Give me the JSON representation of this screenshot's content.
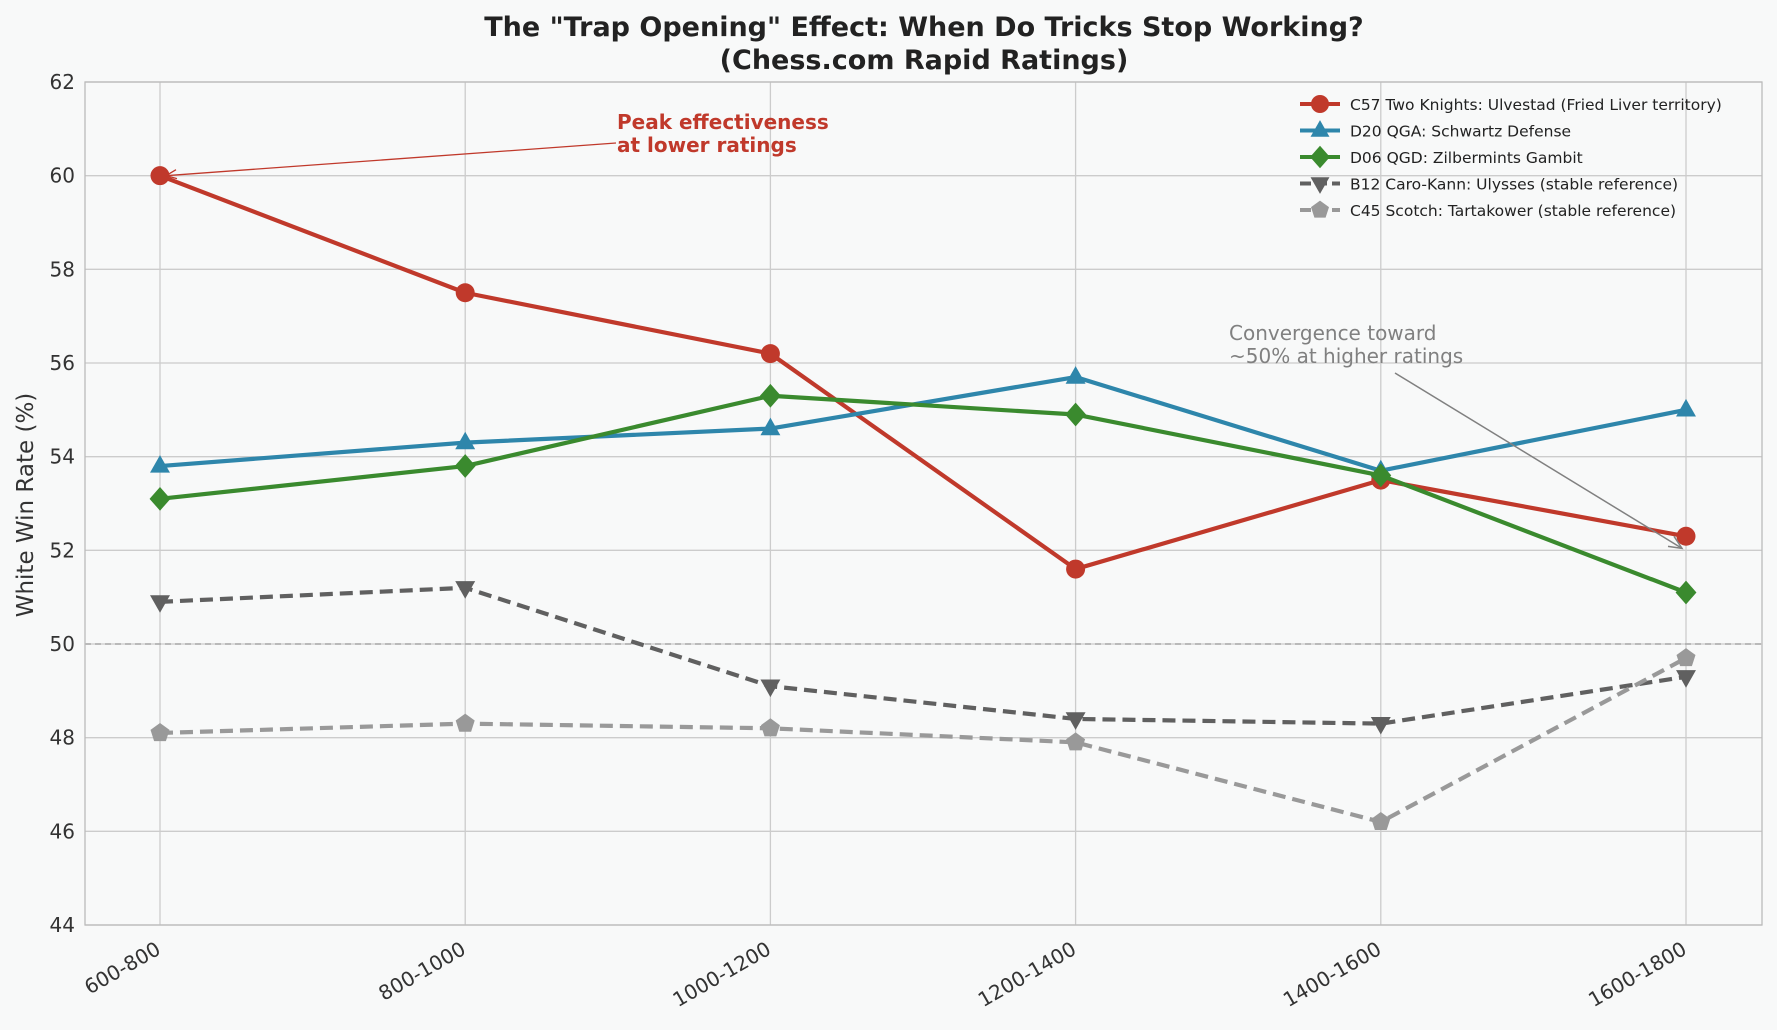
{
  "chart_data": {
    "type": "line",
    "title": "The \"Trap Opening\" Effect: When Do Tricks Stop Working?",
    "subtitle": "(Chess.com Rapid Ratings)",
    "xlabel": "",
    "ylabel": "White Win Rate (%)",
    "categories": [
      "600-800",
      "800-1000",
      "1000-1200",
      "1200-1400",
      "1400-1600",
      "1600-1800"
    ],
    "ylim": [
      44,
      62
    ],
    "yticks": [
      44,
      46,
      48,
      50,
      52,
      54,
      56,
      58,
      60,
      62
    ],
    "grid": true,
    "legend_position": "top-right",
    "reference_line": {
      "y": 50,
      "style": "dashed"
    },
    "series": [
      {
        "name": "C57 Two Knights: Ulvestad (Fried Liver territory)",
        "values": [
          60.0,
          57.5,
          56.2,
          51.6,
          53.5,
          52.3
        ],
        "color": "#c0392b",
        "marker": "circle",
        "line": "solid"
      },
      {
        "name": "D20 QGA: Schwartz Defense",
        "values": [
          53.8,
          54.3,
          54.6,
          55.7,
          53.7,
          55.0
        ],
        "color": "#2e86ab",
        "marker": "triangle-up",
        "line": "solid"
      },
      {
        "name": "D06 QGD: Zilbermints Gambit",
        "values": [
          53.1,
          53.8,
          55.3,
          54.9,
          53.6,
          51.1
        ],
        "color": "#3a8a2e",
        "marker": "diamond",
        "line": "solid"
      },
      {
        "name": "B12 Caro-Kann: Ulysses (stable reference)",
        "values": [
          50.9,
          51.2,
          49.1,
          48.4,
          48.3,
          49.3
        ],
        "color": "#606060",
        "marker": "triangle-down",
        "line": "dashed"
      },
      {
        "name": "C45 Scotch: Tartakower (stable reference)",
        "values": [
          48.1,
          48.3,
          48.2,
          47.9,
          46.2,
          49.7
        ],
        "color": "#999999",
        "marker": "pentagon",
        "line": "dashed"
      }
    ],
    "annotations": [
      {
        "lines": [
          "Peak effectiveness",
          "at lower ratings"
        ],
        "target_category": "600-800",
        "target_value": 60.0,
        "text_color": "#c0392b",
        "bold": true
      },
      {
        "lines": [
          "Convergence toward",
          "~50% at higher ratings"
        ],
        "target_category": "1600-1800",
        "target_value": 52.0,
        "text_color": "#808080",
        "bold": false
      }
    ]
  }
}
